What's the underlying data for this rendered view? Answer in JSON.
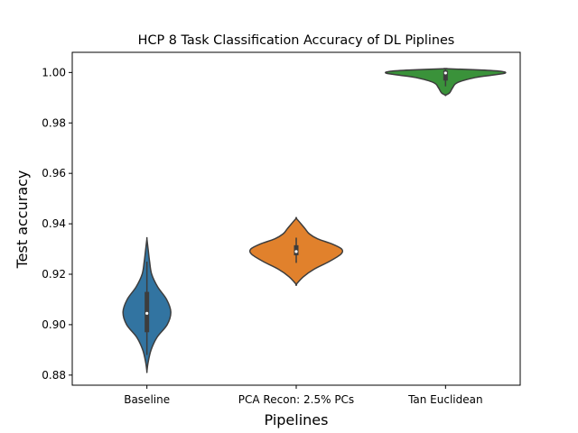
{
  "chart_data": {
    "type": "violin",
    "title": "HCP 8 Task Classification Accuracy of DL Piplines",
    "xlabel": "Pipelines",
    "ylabel": "Test accuracy",
    "ylim": [
      0.876,
      1.008
    ],
    "yticks": [
      0.88,
      0.9,
      0.92,
      0.94,
      0.96,
      0.98,
      1.0
    ],
    "ytick_labels": [
      "0.88",
      "0.90",
      "0.92",
      "0.94",
      "0.96",
      "0.98",
      "1.00"
    ],
    "grid": false,
    "legend": "none",
    "categories": [
      "Baseline",
      "PCA Recon: 2.5% PCs",
      "Tan Euclidean"
    ],
    "series": [
      {
        "color": "#3274a1",
        "min": 0.8815,
        "max": 0.934,
        "q1": 0.897,
        "median": 0.9045,
        "q3": 0.913,
        "whisker_low": 0.888,
        "whisker_high": 0.925,
        "density": [
          [
            0.8815,
            0.0
          ],
          [
            0.885,
            0.02
          ],
          [
            0.89,
            0.07
          ],
          [
            0.895,
            0.17
          ],
          [
            0.9,
            0.34
          ],
          [
            0.905,
            0.4
          ],
          [
            0.91,
            0.33
          ],
          [
            0.915,
            0.18
          ],
          [
            0.92,
            0.08
          ],
          [
            0.925,
            0.045
          ],
          [
            0.93,
            0.02
          ],
          [
            0.934,
            0.0
          ]
        ]
      },
      {
        "color": "#e1812c",
        "min": 0.916,
        "max": 0.9422,
        "q1": 0.9275,
        "median": 0.929,
        "q3": 0.9315,
        "whisker_low": 0.9245,
        "whisker_high": 0.9345,
        "density": [
          [
            0.916,
            0.0
          ],
          [
            0.919,
            0.12
          ],
          [
            0.922,
            0.3
          ],
          [
            0.925,
            0.55
          ],
          [
            0.928,
            0.75
          ],
          [
            0.93,
            0.76
          ],
          [
            0.932,
            0.6
          ],
          [
            0.934,
            0.36
          ],
          [
            0.936,
            0.22
          ],
          [
            0.938,
            0.15
          ],
          [
            0.94,
            0.08
          ],
          [
            0.9422,
            0.0
          ]
        ]
      },
      {
        "color": "#3a923a",
        "min": 0.991,
        "max": 1.0015,
        "q1": 0.9968,
        "median": 0.9998,
        "q3": 1.0008,
        "whisker_low": 0.9945,
        "whisker_high": 1.0012,
        "density": [
          [
            0.991,
            0.0
          ],
          [
            0.992,
            0.07
          ],
          [
            0.994,
            0.12
          ],
          [
            0.996,
            0.2
          ],
          [
            0.998,
            0.5
          ],
          [
            0.999,
            0.8
          ],
          [
            0.9998,
            1.0
          ],
          [
            1.0005,
            0.92
          ],
          [
            1.001,
            0.6
          ],
          [
            1.0015,
            0.0
          ]
        ]
      }
    ]
  }
}
